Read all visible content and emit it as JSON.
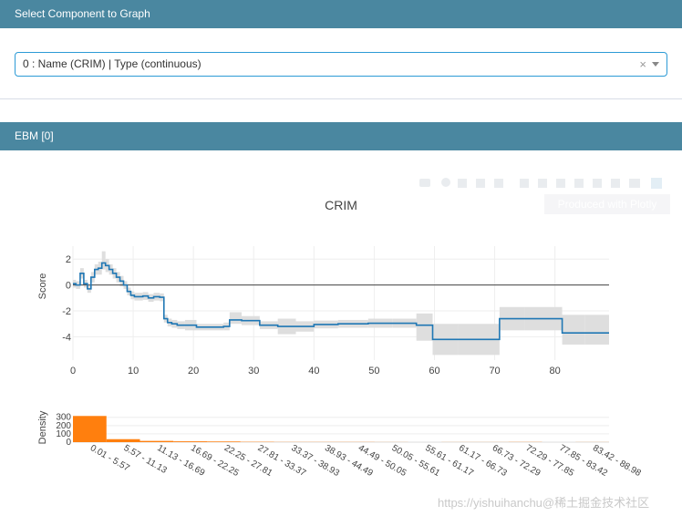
{
  "select_header": {
    "title": "Select Component to Graph"
  },
  "select": {
    "value": "0 : Name (CRIM) | Type (continuous)",
    "clear_glyph": "×"
  },
  "ebm_header": {
    "title": "EBM [0]"
  },
  "modebar": {
    "tooltip": "Produced with Plotly"
  },
  "watermark": "https://yishuihanchu@稀土掘金技术社区",
  "chart_data": [
    {
      "type": "line",
      "title": "CRIM",
      "xlabel": "",
      "ylabel": "Score",
      "xlim": [
        0,
        88.98
      ],
      "ylim": [
        -5.8,
        3
      ],
      "xticks": [
        0,
        10,
        20,
        30,
        40,
        50,
        60,
        70,
        80
      ],
      "yticks": [
        2,
        0,
        -2,
        -4
      ],
      "zero_line": true,
      "grid": true,
      "series": [
        {
          "style": "step",
          "color": "#1f77b4",
          "x": [
            0,
            0.5,
            1.2,
            1.8,
            2.4,
            3.0,
            3.6,
            4.2,
            4.8,
            5.4,
            6.0,
            6.6,
            7.2,
            7.8,
            8.4,
            9.0,
            9.6,
            10.2,
            11.6,
            12.5,
            13.4,
            14.4,
            15.1,
            15.7,
            16.4,
            17.3,
            18.6,
            20.5,
            23.0,
            25.0,
            26.0,
            28.0,
            31.0,
            34.0,
            37.0,
            40.0,
            44.0,
            49.0,
            53.0,
            57.0,
            59.7,
            64.0,
            70.8,
            75.0,
            81.2,
            85.0,
            88.98
          ],
          "y": [
            0.1,
            0.0,
            0.9,
            0.1,
            -0.3,
            0.6,
            1.2,
            1.3,
            1.7,
            1.5,
            1.2,
            0.9,
            0.6,
            0.3,
            0.0,
            -0.5,
            -0.8,
            -0.9,
            -0.85,
            -1.0,
            -0.9,
            -0.95,
            -2.6,
            -2.9,
            -3.0,
            -3.1,
            -3.1,
            -3.25,
            -3.25,
            -3.2,
            -2.7,
            -2.75,
            -3.1,
            -3.2,
            -3.2,
            -3.05,
            -3.0,
            -2.95,
            -2.95,
            -3.1,
            -4.2,
            -4.2,
            -2.6,
            -2.6,
            -3.7,
            -3.7,
            -3.7
          ],
          "band_lower": [
            -0.2,
            -0.3,
            0.5,
            -0.2,
            -0.6,
            0.2,
            0.8,
            0.8,
            1.2,
            1.0,
            0.8,
            0.5,
            0.2,
            -0.1,
            -0.3,
            -0.8,
            -1.1,
            -1.2,
            -1.15,
            -1.3,
            -1.2,
            -1.25,
            -2.9,
            -3.2,
            -3.3,
            -3.4,
            -3.5,
            -3.5,
            -3.5,
            -3.5,
            -3.0,
            -3.1,
            -3.4,
            -3.8,
            -3.6,
            -3.35,
            -3.3,
            -3.3,
            -3.3,
            -4.3,
            -5.4,
            -5.4,
            -3.5,
            -3.5,
            -4.6,
            -4.6,
            -4.6
          ],
          "band_upper": [
            0.4,
            0.3,
            1.3,
            0.4,
            0.0,
            1.0,
            1.6,
            1.8,
            2.6,
            2.0,
            1.6,
            1.3,
            1.0,
            0.7,
            0.3,
            -0.2,
            -0.5,
            -0.6,
            -0.55,
            -0.7,
            -0.6,
            -0.65,
            -2.3,
            -2.6,
            -2.7,
            -2.8,
            -2.7,
            -3.0,
            -3.0,
            -2.9,
            -2.1,
            -2.4,
            -2.8,
            -2.6,
            -2.8,
            -2.75,
            -2.7,
            -2.6,
            -2.6,
            -2.2,
            -3.0,
            -3.0,
            -1.7,
            -1.7,
            -2.3,
            -2.3,
            -2.3
          ]
        }
      ]
    },
    {
      "type": "bar",
      "xlabel": "",
      "ylabel": "Density",
      "ylim": [
        0,
        330
      ],
      "yticks": [
        300,
        200,
        100,
        0
      ],
      "color": "#ff7f0e",
      "categories": [
        "0.01 - 5.57",
        "5.57 - 11.13",
        "11.13 - 16.69",
        "16.69 - 22.25",
        "22.25 - 27.81",
        "27.81 - 33.37",
        "33.37 - 38.93",
        "38.93 - 44.49",
        "44.49 - 50.05",
        "50.05 - 55.61",
        "55.61 - 61.17",
        "61.17 - 66.73",
        "66.73 - 72.29",
        "72.29 - 77.85",
        "77.85 - 83.42",
        "83.42 - 88.98"
      ],
      "values": [
        316,
        36,
        15,
        10,
        8,
        4,
        2,
        2,
        2,
        1,
        0,
        1,
        1,
        2,
        0,
        1
      ]
    }
  ]
}
